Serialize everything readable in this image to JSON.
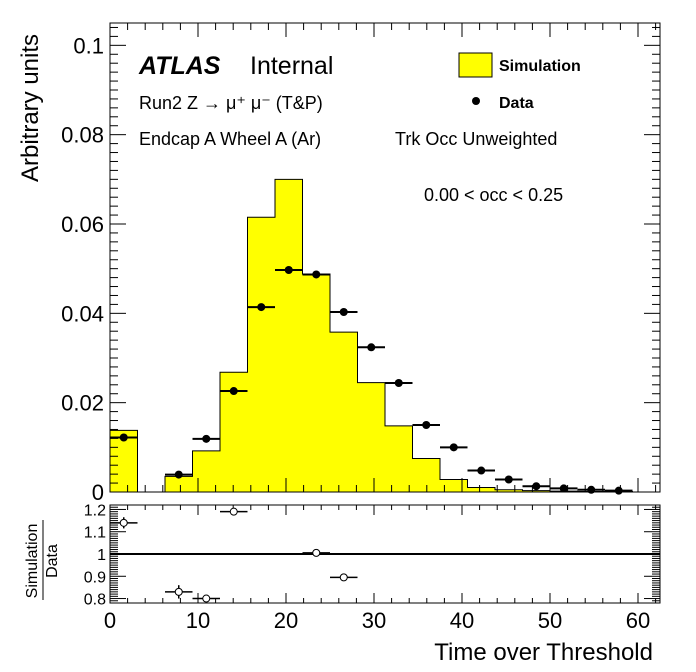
{
  "chart_data": [
    {
      "type": "bar",
      "ylabel": "Arbitrary units",
      "xlim": [
        0,
        62.5
      ],
      "ylim": [
        0,
        0.105
      ],
      "ytick_labels": [
        "0",
        "0.02",
        "0.04",
        "0.06",
        "0.08",
        "0.1"
      ],
      "annotations": {
        "atlas": "ATLAS",
        "internal": "Internal",
        "line1": "Run2 Z → μ⁺ μ⁻ (T&P)",
        "line2": "Endcap A Wheel A (Ar)",
        "line3": "Trk Occ Unweighted",
        "line4": "0.00 < occ < 0.25"
      },
      "legend": {
        "placement": "top-right",
        "entries": [
          "Simulation",
          "Data"
        ]
      },
      "series": [
        {
          "name": "Simulation",
          "style": "filled-histogram",
          "color": "#ffff00",
          "bin_edges": [
            0,
            3.125,
            6.25,
            9.375,
            12.5,
            15.625,
            18.75,
            21.875,
            25,
            28.125,
            31.25,
            34.375,
            37.5,
            40.625,
            43.75,
            46.875,
            50,
            53.125,
            56.25,
            59.375
          ],
          "values": [
            0.0138,
            0.0,
            0.0035,
            0.0092,
            0.0268,
            0.0615,
            0.07,
            0.0488,
            0.0358,
            0.0245,
            0.0148,
            0.0075,
            0.0028,
            0.001,
            0.0005,
            0.0003,
            0.0002,
            0.0001,
            0.0001
          ]
        },
        {
          "name": "Data",
          "style": "points-with-errors",
          "color": "#000000",
          "x": [
            1.5625,
            7.8125,
            10.9375,
            14.0625,
            17.1875,
            20.3125,
            23.4375,
            26.5625,
            29.6875,
            32.8125,
            35.9375,
            39.0625,
            42.1875,
            45.3125,
            48.4375,
            51.5625,
            54.6875,
            57.8125
          ],
          "y": [
            0.0122,
            0.0039,
            0.0119,
            0.0226,
            0.0414,
            0.0497,
            0.0487,
            0.0403,
            0.0324,
            0.0244,
            0.015,
            0.01,
            0.0048,
            0.0028,
            0.0013,
            0.0008,
            0.0005,
            0.0003
          ]
        }
      ]
    },
    {
      "type": "scatter",
      "ylabel_top": "Simulation",
      "ylabel_bottom": "Data",
      "xlabel": "Time over Threshold",
      "xlim": [
        0,
        62.5
      ],
      "ylim": [
        0.78,
        1.22
      ],
      "reference_line": 1,
      "ytick_labels": [
        "0.8",
        "0.9",
        "1",
        "1.1",
        "1.2"
      ],
      "xtick_labels": [
        "0",
        "10",
        "20",
        "30",
        "40",
        "50",
        "60"
      ],
      "series": [
        {
          "style": "open-points-with-errors",
          "x": [
            1.5625,
            7.8125,
            10.9375,
            14.0625,
            23.4375,
            26.5625
          ],
          "y": [
            1.14,
            0.83,
            0.8,
            1.19,
            1.005,
            0.895
          ],
          "yerr": [
            0.025,
            0.03,
            0.015,
            0.012,
            0.004,
            0.006
          ]
        }
      ]
    }
  ]
}
